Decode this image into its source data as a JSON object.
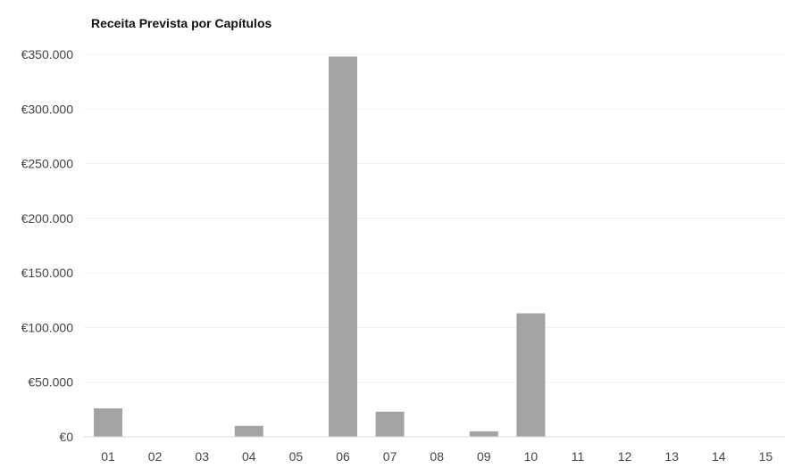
{
  "chart_data": {
    "type": "bar",
    "title": "Receita Prevista por Capítulos",
    "xlabel": "",
    "ylabel": "",
    "categories": [
      "01",
      "02",
      "03",
      "04",
      "05",
      "06",
      "07",
      "08",
      "09",
      "10",
      "11",
      "12",
      "13",
      "14",
      "15"
    ],
    "values": [
      26000,
      0,
      0,
      10000,
      0,
      348000,
      23000,
      0,
      5000,
      113000,
      0,
      0,
      0,
      0,
      0
    ],
    "ylim": [
      0,
      350000
    ],
    "y_ticks": [
      0,
      50000,
      100000,
      150000,
      200000,
      250000,
      300000,
      350000
    ],
    "y_tick_labels": [
      "€0",
      "€50.000",
      "€100.000",
      "€150.000",
      "€200.000",
      "€250.000",
      "€300.000",
      "€350.000"
    ],
    "grid": true,
    "legend": "none",
    "colors": {
      "bar": "#a3a3a3",
      "gridline": "#f1f1f1",
      "axis": "#d9d9d9"
    }
  }
}
